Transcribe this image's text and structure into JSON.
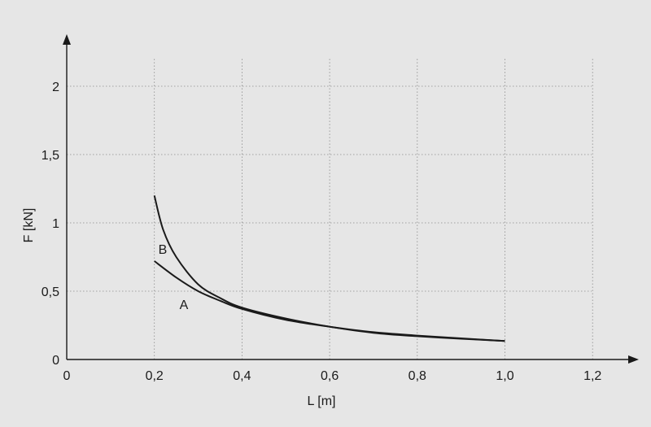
{
  "chart_data": {
    "type": "line",
    "xlabel": "L [m]",
    "ylabel": "F [kN]",
    "xlim": [
      0,
      1.3
    ],
    "ylim": [
      0,
      2.2
    ],
    "x_ticks": [
      0,
      0.2,
      0.4,
      0.6,
      0.8,
      1.0,
      1.2
    ],
    "x_tick_labels": [
      "0",
      "0,2",
      "0,4",
      "0,6",
      "0,8",
      "1,0",
      "1,2"
    ],
    "y_ticks": [
      0,
      0.5,
      1,
      1.5,
      2
    ],
    "y_tick_labels": [
      "0",
      "0,5",
      "1",
      "1,5",
      "2"
    ],
    "grid": true,
    "series": [
      {
        "name": "A",
        "x": [
          0.2,
          0.25,
          0.3,
          0.35,
          0.4,
          0.5,
          0.6,
          0.7,
          0.8,
          0.9,
          1.0
        ],
        "values": [
          0.72,
          0.6,
          0.5,
          0.43,
          0.37,
          0.29,
          0.24,
          0.2,
          0.175,
          0.155,
          0.135
        ]
      },
      {
        "name": "B",
        "x": [
          0.2,
          0.22,
          0.25,
          0.3,
          0.35,
          0.4,
          0.5,
          0.6,
          0.7,
          0.8,
          0.9,
          1.0
        ],
        "values": [
          1.2,
          0.95,
          0.75,
          0.55,
          0.45,
          0.38,
          0.3,
          0.24,
          0.195,
          0.17,
          0.152,
          0.135
        ]
      }
    ]
  }
}
